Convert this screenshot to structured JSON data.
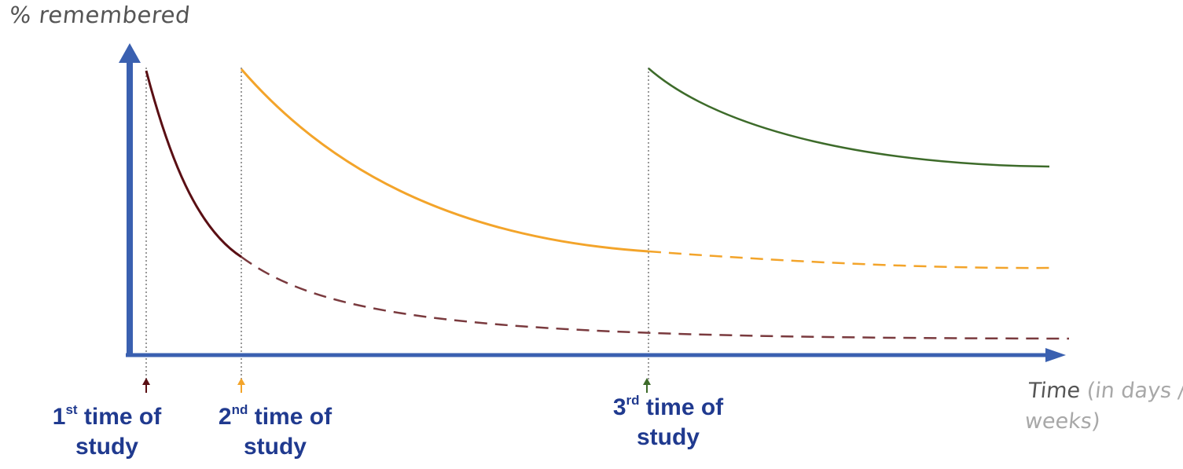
{
  "axis": {
    "y_label": "% remembered",
    "x_label_main": "Time",
    "x_label_sub": "(in days / weeks)"
  },
  "events": [
    {
      "ordinal": "1",
      "suffix": "st",
      "line1": " time of",
      "line2": "study",
      "color": "#5a0f14"
    },
    {
      "ordinal": "2",
      "suffix": "nd",
      "line1": " time of",
      "line2": "study",
      "color": "#f3a42a"
    },
    {
      "ordinal": "3",
      "suffix": "rd",
      "line1": " time of",
      "line2": "study",
      "color": "#3d6b2a"
    }
  ],
  "colors": {
    "axis": "#3a60b0",
    "guide": "#9a9a9a",
    "curve_1": "#5a0f14",
    "curve_1_dashed": "#7a3a3e",
    "curve_2": "#f3a42a",
    "curve_3": "#3d6b2a"
  }
}
